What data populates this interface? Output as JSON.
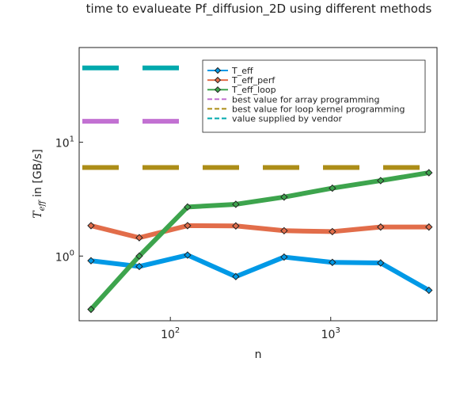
{
  "chart_data": {
    "type": "line",
    "title": "time to evalueate Pf_diffusion_2D using different methods",
    "xlabel": "n",
    "ylabel_symbol": "T",
    "ylabel_subscript": "eff",
    "ylabel_suffix": " in [GB/s]",
    "x_scale": "log10",
    "y_scale": "log10",
    "xlim": [
      27,
      4600
    ],
    "ylim": [
      0.27,
      68
    ],
    "x_ticks": [
      {
        "value": 100,
        "base": "10",
        "exp": "2"
      },
      {
        "value": 1000,
        "base": "10",
        "exp": "3"
      }
    ],
    "y_ticks": [
      {
        "value": 1,
        "base": "10",
        "exp": "0"
      },
      {
        "value": 10,
        "base": "10",
        "exp": "1"
      }
    ],
    "x": [
      32,
      64,
      128,
      256,
      512,
      1024,
      2048,
      4096
    ],
    "series": [
      {
        "name": "T_eff",
        "color": "#0099e6",
        "marker": "diamond",
        "values": [
          0.91,
          0.81,
          1.02,
          0.66,
          0.98,
          0.88,
          0.87,
          0.5
        ]
      },
      {
        "name": "T_eff_perf",
        "color": "#e26d4a",
        "marker": "diamond",
        "values": [
          1.85,
          1.45,
          1.85,
          1.84,
          1.67,
          1.64,
          1.8,
          1.8
        ]
      },
      {
        "name": "T_eff_loop",
        "color": "#3da44d",
        "marker": "diamond",
        "values": [
          0.34,
          1.0,
          2.7,
          2.85,
          3.3,
          3.95,
          4.6,
          5.4
        ]
      }
    ],
    "reference_lines": [
      {
        "name": "best value for array programming",
        "color": "#c271d2",
        "y": 15.3
      },
      {
        "name": "best value for loop kernel programming",
        "color": "#ac8d18",
        "y": 6.0
      },
      {
        "name": "value supplied by vendor",
        "color": "#00a9ad",
        "y": 45.0
      }
    ],
    "legend_position": "top-right",
    "grid": false
  }
}
